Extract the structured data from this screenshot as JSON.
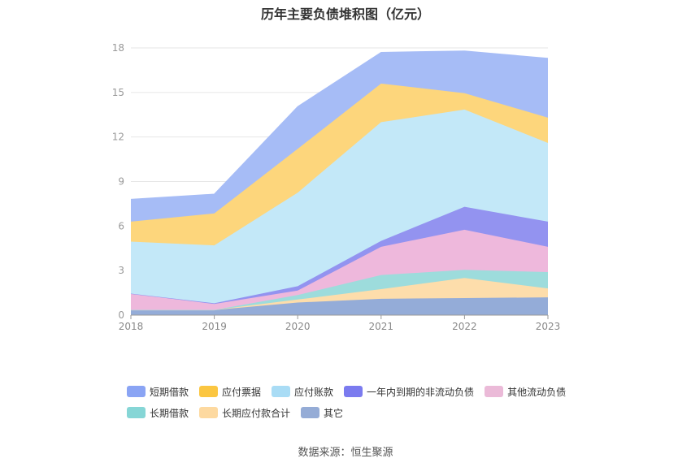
{
  "title": "历年主要负债堆积图（亿元）",
  "source_text": "数据来源：恒生聚源",
  "chart_data": {
    "type": "area",
    "stacked": true,
    "title": "历年主要负债堆积图（亿元）",
    "x": [
      "2018",
      "2019",
      "2020",
      "2021",
      "2022",
      "2023"
    ],
    "ylim": [
      0,
      18
    ],
    "yticks": [
      "0",
      "3",
      "6",
      "9",
      "12",
      "15",
      "18"
    ],
    "grid": true,
    "legend_position": "bottom",
    "series": [
      {
        "name": "其它",
        "color": "#94acd8",
        "values": [
          0.35,
          0.35,
          0.85,
          1.1,
          1.15,
          1.2
        ]
      },
      {
        "name": "长期应付款合计",
        "color": "#fdddab",
        "values": [
          0.0,
          0.0,
          0.2,
          0.65,
          1.35,
          0.6
        ]
      },
      {
        "name": "长期借款",
        "color": "#9ddcdc",
        "values": [
          0.0,
          0.0,
          0.3,
          0.95,
          0.55,
          1.1
        ]
      },
      {
        "name": "其他流动负债",
        "color": "#eeb8dc",
        "values": [
          1.1,
          0.4,
          0.3,
          1.9,
          2.7,
          1.7
        ]
      },
      {
        "name": "一年内到期的非流动负债",
        "color": "#9393f0",
        "values": [
          0.0,
          0.05,
          0.3,
          0.4,
          1.55,
          1.7
        ]
      },
      {
        "name": "应付账款",
        "color": "#c3e8f8",
        "values": [
          3.5,
          3.9,
          6.3,
          8.0,
          6.55,
          5.3
        ]
      },
      {
        "name": "应付票据",
        "color": "#fdd67c",
        "values": [
          1.35,
          2.15,
          2.95,
          2.6,
          1.1,
          1.7
        ]
      },
      {
        "name": "短期借款",
        "color": "#a6bcf6",
        "values": [
          1.5,
          1.3,
          2.85,
          2.1,
          2.85,
          4.0
        ]
      }
    ]
  },
  "legend": [
    {
      "label": "短期借款",
      "color": "#8aa4f4"
    },
    {
      "label": "应付票据",
      "color": "#fbc641"
    },
    {
      "label": "应付账款",
      "color": "#a9dcf5"
    },
    {
      "label": "一年内到期的非流动负债",
      "color": "#7b7bef"
    },
    {
      "label": "其他流动负债",
      "color": "#ebbad8"
    },
    {
      "label": "长期借款",
      "color": "#86d6d6"
    },
    {
      "label": "长期应付款合计",
      "color": "#fdd9a0"
    },
    {
      "label": "其它",
      "color": "#95acd6"
    }
  ]
}
